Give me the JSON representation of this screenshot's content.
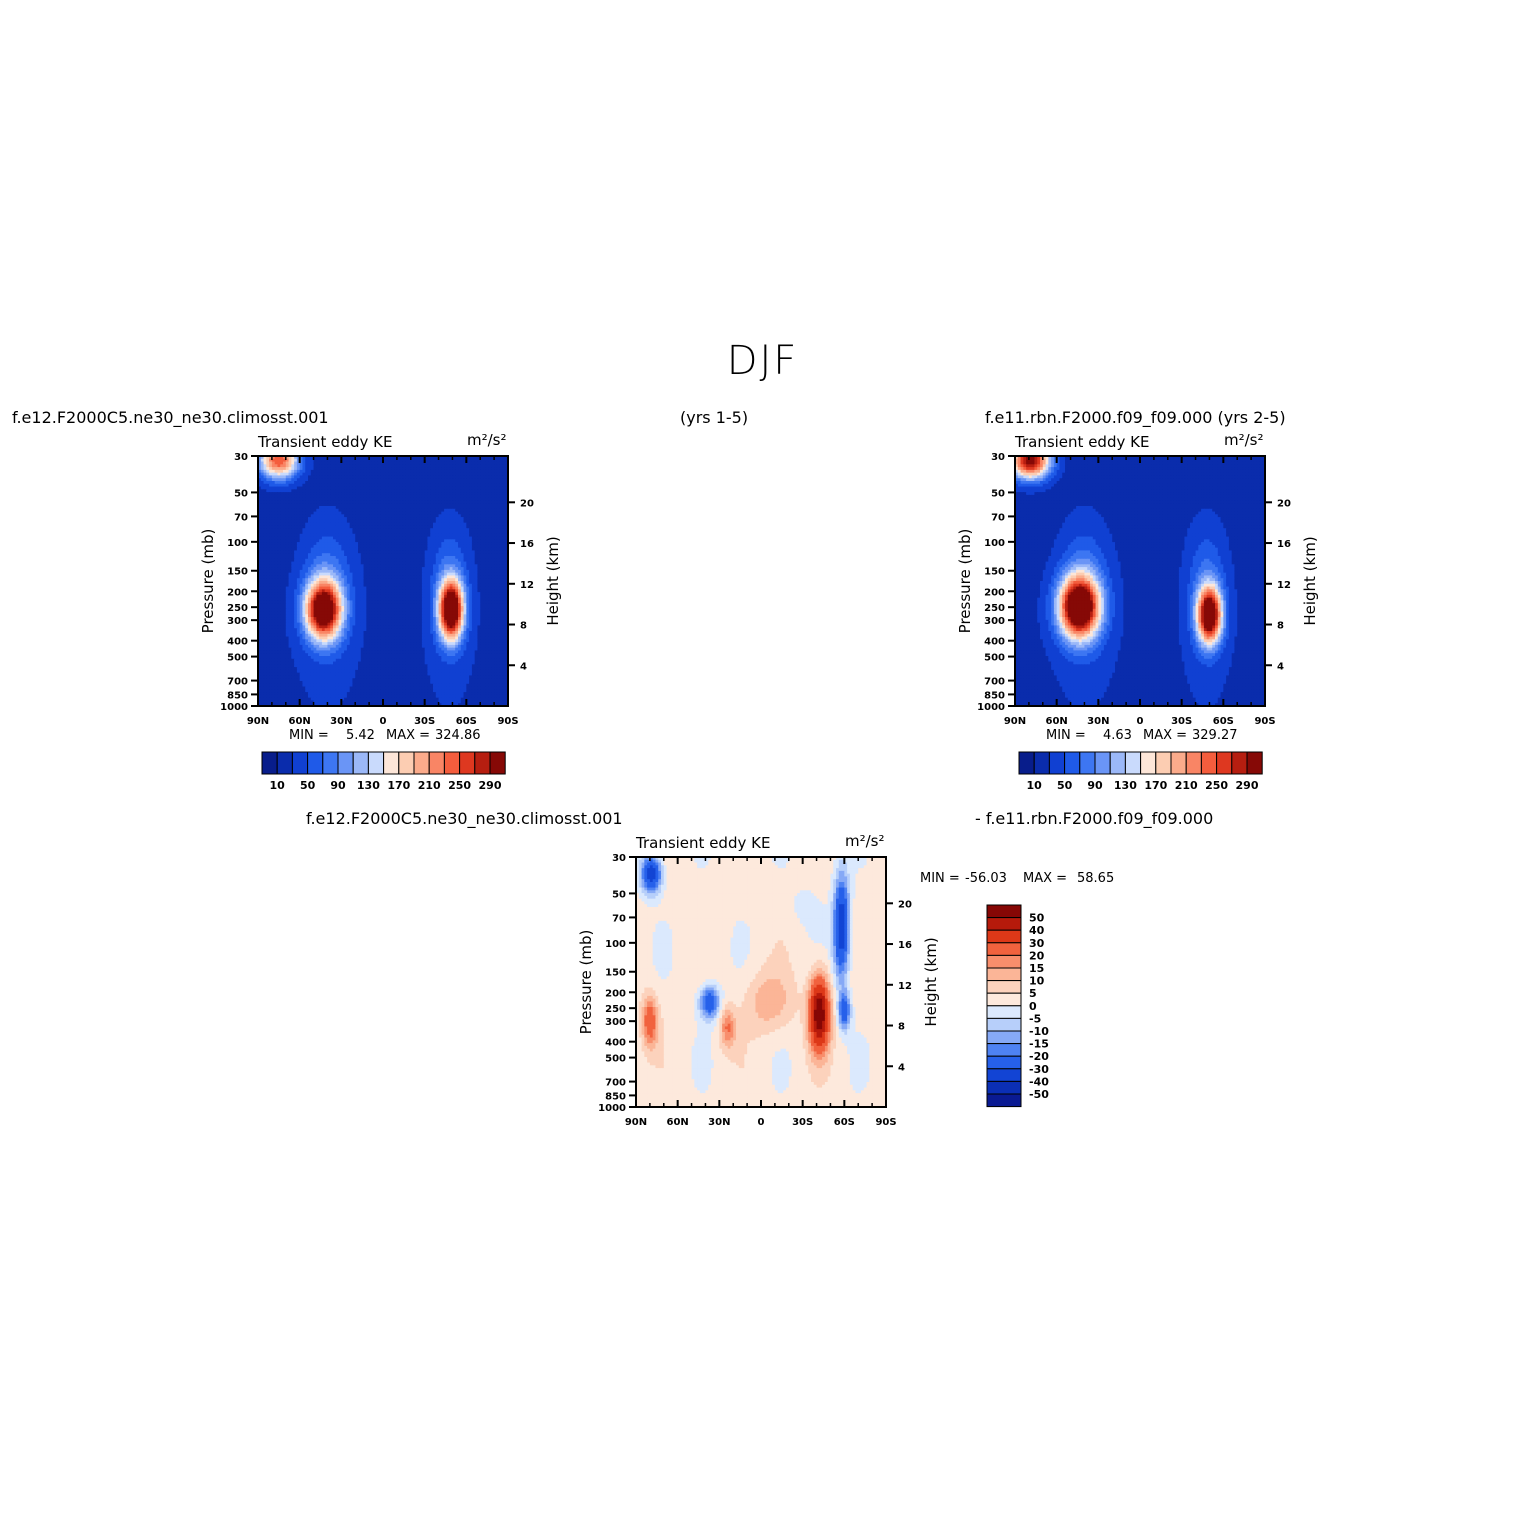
{
  "page": {
    "title": "DJF",
    "case1_label": "f.e12.F2000C5.ne30_ne30.climosst.001",
    "years_label": "(yrs  1-5)",
    "case2_label": "f.e11.rbn.F2000.f09_f09.000  (yrs 2-5)",
    "diff_case1_label": "f.e12.F2000C5.ne30_ne30.climosst.001",
    "diff_case2_label": "- f.e11.rbn.F2000.f09_f09.000"
  },
  "colors": {
    "abs_levels": [
      "#081d8b",
      "#0a2cac",
      "#1040d2",
      "#1f5ae8",
      "#3d76f2",
      "#6a95f6",
      "#9bb8f8",
      "#c9dafc",
      "#fde6d8",
      "#fccdb2",
      "#fbab8b",
      "#f98565",
      "#f45d3d",
      "#de3820",
      "#b61e10",
      "#860906"
    ],
    "diff_levels": [
      "#0a1a92",
      "#0b2fb5",
      "#1244d4",
      "#2660ea",
      "#4e82f3",
      "#86a9f6",
      "#b7cffa",
      "#dbe9fd",
      "#fde9dc",
      "#fcd2bc",
      "#fbb597",
      "#f88e6c",
      "#f1623e",
      "#dd3818",
      "#b61a0b",
      "#860705"
    ]
  },
  "chart_data": [
    {
      "type": "heatmap",
      "panel": "case1",
      "title": "Transient  eddy  KE",
      "units": "m²/s²",
      "ylabel": "Pressure  (mb)",
      "ylabel_right": "Height  (km)",
      "x_ticks": [
        "90N",
        "60N",
        "30N",
        "0",
        "30S",
        "60S",
        "90S"
      ],
      "y_ticks": [
        "30",
        "50",
        "70",
        "100",
        "150",
        "200",
        "250",
        "300",
        "400",
        "500",
        "700",
        "850",
        "1000"
      ],
      "y_right_ticks": [
        "20",
        "16",
        "12",
        "8",
        "4"
      ],
      "min_label": "MIN =",
      "min": "5.42",
      "max_label": "MAX =",
      "max": "324.86",
      "colorbar_labels": [
        "10",
        "50",
        "90",
        "130",
        "170",
        "210",
        "250",
        "290"
      ],
      "features": [
        {
          "lat": 75,
          "p": 32,
          "value": 230,
          "lat_sd": 10,
          "logp_sd": 0.14
        },
        {
          "lat": 43,
          "p": 260,
          "value": 300,
          "lat_sd": 9,
          "logp_sd": 0.22
        },
        {
          "lat": -49,
          "p": 260,
          "value": 324,
          "lat_sd": 6,
          "logp_sd": 0.22
        }
      ]
    },
    {
      "type": "heatmap",
      "panel": "case2",
      "title": "Transient  eddy  KE",
      "units": "m²/s²",
      "ylabel": "Pressure  (mb)",
      "ylabel_right": "Height  (km)",
      "x_ticks": [
        "90N",
        "60N",
        "30N",
        "0",
        "30S",
        "60S",
        "90S"
      ],
      "y_ticks": [
        "30",
        "50",
        "70",
        "100",
        "150",
        "200",
        "250",
        "300",
        "400",
        "500",
        "700",
        "850",
        "1000"
      ],
      "y_right_ticks": [
        "20",
        "16",
        "12",
        "8",
        "4"
      ],
      "min_label": "MIN =",
      "min": "4.63",
      "max_label": "MAX =",
      "max": "329.27",
      "colorbar_labels": [
        "10",
        "50",
        "90",
        "130",
        "170",
        "210",
        "250",
        "290"
      ],
      "features": [
        {
          "lat": 79,
          "p": 32,
          "value": 290,
          "lat_sd": 10,
          "logp_sd": 0.14
        },
        {
          "lat": 44,
          "p": 250,
          "value": 329,
          "lat_sd": 10,
          "logp_sd": 0.23
        },
        {
          "lat": -50,
          "p": 280,
          "value": 310,
          "lat_sd": 6,
          "logp_sd": 0.21
        }
      ]
    },
    {
      "type": "heatmap",
      "panel": "difference",
      "title": "Transient  eddy  KE",
      "units": "m²/s²",
      "ylabel": "Pressure  (mb)",
      "ylabel_right": "Height  (km)",
      "x_ticks": [
        "90N",
        "60N",
        "30N",
        "0",
        "30S",
        "60S",
        "90S"
      ],
      "y_ticks": [
        "30",
        "50",
        "70",
        "100",
        "150",
        "200",
        "250",
        "300",
        "400",
        "500",
        "700",
        "850",
        "1000"
      ],
      "y_right_ticks": [
        "20",
        "16",
        "12",
        "8",
        "4"
      ],
      "min_label": "MIN =",
      "min": "-56.03",
      "max_label": "MAX =",
      "max": "58.65",
      "colorbar_labels": [
        "50",
        "40",
        "30",
        "20",
        "15",
        "10",
        "5",
        "0",
        "-5",
        "-10",
        "-15",
        "-20",
        "-30",
        "-40",
        "-50"
      ],
      "features": [
        {
          "lat": 79,
          "p": 38,
          "value": -40,
          "lat_sd": 5,
          "logp_sd": 0.18
        },
        {
          "lat": 80,
          "p": 300,
          "value": 25,
          "lat_sd": 4,
          "logp_sd": 0.25
        },
        {
          "lat": 37,
          "p": 230,
          "value": -30,
          "lat_sd": 5,
          "logp_sd": 0.16
        },
        {
          "lat": 24,
          "p": 330,
          "value": 18,
          "lat_sd": 4,
          "logp_sd": 0.2
        },
        {
          "lat": -6,
          "p": 230,
          "value": 12,
          "lat_sd": 12,
          "logp_sd": 0.3
        },
        {
          "lat": -42,
          "p": 270,
          "value": 58,
          "lat_sd": 5,
          "logp_sd": 0.35
        },
        {
          "lat": -58,
          "p": 80,
          "value": -40,
          "lat_sd": 4,
          "logp_sd": 0.5
        },
        {
          "lat": -60,
          "p": 260,
          "value": -28,
          "lat_sd": 3,
          "logp_sd": 0.18
        },
        {
          "lat": -32,
          "p": 60,
          "value": -4,
          "lat_sd": 8,
          "logp_sd": 0.2
        }
      ]
    }
  ]
}
